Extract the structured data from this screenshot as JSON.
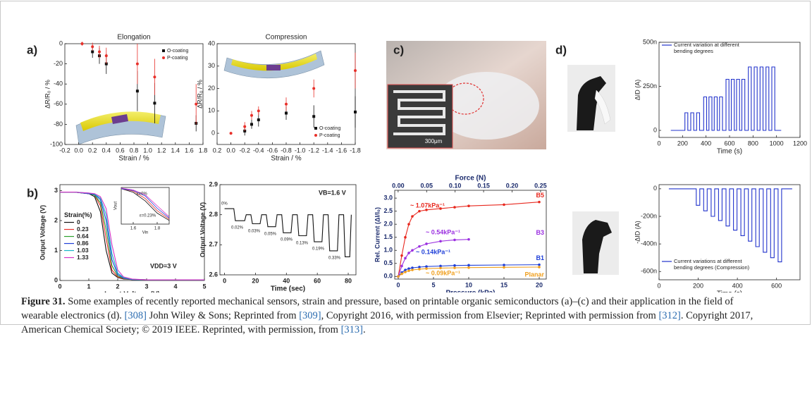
{
  "figure": {
    "panel_labels": [
      "a)",
      "b)",
      "c)",
      "d)"
    ],
    "photo_scale_bar": "300μm",
    "charts": [
      {
        "type": "errorbar",
        "title": "Elongation",
        "xlabel": "Strain / %",
        "ylabel": "ΔR/R₀ / %",
        "xlim": [
          -0.2,
          1.8
        ],
        "xticks": [
          -0.2,
          {
            "value": 0,
            "label": "0.0"
          },
          0.2,
          0.4,
          0.6,
          0.8,
          {
            "value": 1,
            "label": "1.0"
          },
          1.2,
          1.4,
          1.6,
          1.8
        ],
        "ylim": [
          -100,
          0
        ],
        "yticks": [
          -100,
          -80,
          -60,
          -40,
          -20,
          0
        ],
        "legend": "upper right",
        "series": [
          {
            "name": "O-coating",
            "color": "#111111",
            "marker": "square",
            "x": [
              0.2,
              0.3,
              0.4,
              0.85,
              1.1,
              1.7
            ],
            "values": [
              -8,
              -12,
              -20,
              -47,
              -59,
              -79
            ],
            "errors": [
              6,
              8,
              10,
              20,
              20,
              8
            ]
          },
          {
            "name": "P-coating",
            "color": "#e8302a",
            "marker": "circle",
            "x": [
              0.05,
              0.2,
              0.3,
              0.4,
              0.85,
              1.1,
              1.7
            ],
            "values": [
              0,
              -3,
              -8,
              -12,
              -20,
              -33,
              -60
            ],
            "errors": [
              2,
              4,
              6,
              8,
              20,
              18,
              20
            ]
          }
        ]
      },
      {
        "type": "errorbar",
        "title": "Compression",
        "xlabel": "Strain / %",
        "ylabel": "ΔR/R₀ / %",
        "xlim": [
          0.2,
          -1.8
        ],
        "xticks": [
          0.2,
          {
            "value": 0,
            "label": "0.0"
          },
          -0.2,
          -0.4,
          -0.6,
          -0.8,
          {
            "value": -1,
            "label": "-1.0"
          },
          -1.2,
          -1.4,
          -1.6,
          -1.8
        ],
        "ylim": [
          -5,
          40
        ],
        "yticks": [
          0,
          10,
          20,
          30,
          40
        ],
        "legend": "lower right",
        "series": [
          {
            "name": "O-coating",
            "color": "#111111",
            "marker": "square",
            "x": [
              -0.2,
              -0.3,
              -0.4,
              -0.8,
              -1.2,
              -1.8
            ],
            "values": [
              1,
              4,
              6,
              9,
              7.5,
              9.5
            ],
            "errors": [
              2,
              2,
              3,
              3,
              5,
              7
            ]
          },
          {
            "name": "P-coating",
            "color": "#e8302a",
            "marker": "circle",
            "x": [
              0,
              -0.2,
              -0.3,
              -0.4,
              -0.8,
              -1.2,
              -1.8
            ],
            "values": [
              0,
              3,
              8,
              10,
              13,
              20,
              28
            ],
            "errors": [
              0.5,
              2,
              2,
              2,
              3,
              4,
              8
            ]
          }
        ]
      },
      {
        "type": "line",
        "xlabel": "Input Voltage (V)",
        "ylabel": "Output Voltage (V)",
        "xlim": [
          0,
          5
        ],
        "xticks": [
          0,
          1,
          2,
          3,
          4,
          5
        ],
        "ylim": [
          0,
          3.2
        ],
        "yticks": [
          0,
          1,
          2,
          3
        ],
        "legend": "center left",
        "legend_title": "Strain(%)",
        "annotations": [
          "VDD=3 V"
        ],
        "x": [
          0,
          0.5,
          1,
          1.2,
          1.4,
          1.6,
          1.8,
          2,
          2.2,
          2.5,
          3,
          4,
          5
        ],
        "series": [
          {
            "name": "0",
            "color": "#111111",
            "values": [
              2.95,
              2.95,
              2.9,
              2.8,
              2.3,
              1.0,
              0.25,
              0.1,
              0.05,
              0.03,
              0.02,
              0.02,
              0.02
            ]
          },
          {
            "name": "0.23",
            "color": "#e8302a",
            "values": [
              2.95,
              2.95,
              2.9,
              2.85,
              2.5,
              1.4,
              0.35,
              0.12,
              0.06,
              0.03,
              0.02,
              0.02,
              0.02
            ]
          },
          {
            "name": "0.64",
            "color": "#2ca02c",
            "values": [
              2.95,
              2.95,
              2.9,
              2.85,
              2.6,
              1.7,
              0.5,
              0.15,
              0.07,
              0.03,
              0.02,
              0.02,
              0.02
            ]
          },
          {
            "name": "0.86",
            "color": "#1f3fd8",
            "values": [
              2.95,
              2.95,
              2.9,
              2.87,
              2.7,
              2.0,
              0.7,
              0.2,
              0.08,
              0.03,
              0.02,
              0.02,
              0.02
            ]
          },
          {
            "name": "1.03",
            "color": "#17b3c8",
            "values": [
              2.95,
              2.95,
              2.92,
              2.88,
              2.75,
              2.2,
              0.9,
              0.25,
              0.1,
              0.04,
              0.02,
              0.02,
              0.02
            ]
          },
          {
            "name": "1.33",
            "color": "#d633c8",
            "values": [
              2.95,
              2.95,
              2.92,
              2.9,
              2.8,
              2.4,
              1.2,
              0.35,
              0.12,
              0.05,
              0.02,
              0.02,
              0.02
            ]
          }
        ]
      },
      {
        "type": "line",
        "xlabel": "Vin",
        "ylabel": "Vout",
        "xlim": [
          1.5,
          1.9
        ],
        "xticks": [
          1.6,
          1.8
        ],
        "ylim": [
          0,
          3
        ],
        "annotations": [
          "ε=0%",
          "ε=0.23%"
        ],
        "x": [
          1.5,
          1.6,
          1.7,
          1.8,
          1.9
        ],
        "series": [
          {
            "color": "#111111",
            "values": [
              2.9,
              2.6,
              1.9,
              0.9,
              0.3
            ]
          },
          {
            "color": "#e8302a",
            "values": [
              2.9,
              2.7,
              2.1,
              1.1,
              0.4
            ]
          },
          {
            "color": "#1f3fd8",
            "values": [
              2.9,
              2.75,
              2.3,
              1.3,
              0.5
            ]
          },
          {
            "color": "#d633c8",
            "values": [
              2.95,
              2.8,
              2.4,
              1.5,
              0.6
            ]
          }
        ]
      },
      {
        "type": "line",
        "xlabel": "Time (sec)",
        "ylabel": "Output Voltage (V)",
        "xlim": [
          -3,
          85
        ],
        "xticks": [
          0,
          20,
          40,
          60,
          80
        ],
        "ylim": [
          2.6,
          2.9
        ],
        "yticks": [
          2.6,
          2.7,
          2.8,
          2.9
        ],
        "annotations": [
          "VB=1.6 V",
          "0%",
          "0.02%",
          "0.03%",
          "0.05%",
          "0.09%",
          "0.13%",
          "0.19%",
          "0.33%"
        ],
        "x": [
          0,
          6,
          7,
          13,
          14,
          17,
          18,
          23,
          24,
          27,
          28,
          33,
          34,
          37,
          38,
          43,
          44,
          47,
          48,
          53,
          54,
          57,
          58,
          63,
          64,
          67,
          68,
          73,
          74,
          77,
          78,
          81,
          82
        ],
        "series": [
          {
            "color": "#111111",
            "values": [
              2.82,
              2.82,
              2.78,
              2.78,
              2.8,
              2.8,
              2.77,
              2.77,
              2.8,
              2.8,
              2.76,
              2.76,
              2.8,
              2.8,
              2.74,
              2.74,
              2.8,
              2.8,
              2.73,
              2.73,
              2.8,
              2.8,
              2.71,
              2.71,
              2.8,
              2.8,
              2.68,
              2.68,
              2.8,
              2.8,
              2.66,
              2.66,
              2.8
            ]
          }
        ]
      },
      {
        "type": "scatter-line",
        "xlabel": "Pressure (kPa)",
        "x2label": "Force (N)",
        "ylabel": "Rel. Current (ΔI/I₀)",
        "xlim": [
          -0.5,
          21
        ],
        "xticks": [
          0,
          5,
          10,
          15,
          20
        ],
        "x2lim": [
          -0.006,
          0.26
        ],
        "x2ticks": [
          {
            "value": 0,
            "label": "0.00"
          },
          0.05,
          {
            "value": 0.1,
            "label": "0.10"
          },
          0.15,
          {
            "value": 0.2,
            "label": "0.20"
          },
          0.25
        ],
        "ylim": [
          -0.1,
          3.3
        ],
        "yticks": [
          {
            "value": 0,
            "label": "0.0"
          },
          0.5,
          {
            "value": 1,
            "label": "1.0"
          },
          1.5,
          {
            "value": 2,
            "label": "2.0"
          },
          2.5,
          {
            "value": 3,
            "label": "3.0"
          }
        ],
        "legend": "end",
        "annotations": [
          {
            "text": "~ 1.07kPa⁻¹",
            "color": "#e8281e"
          },
          {
            "text": "~ 0.54kPa⁻¹",
            "color": "#9b30e0"
          },
          {
            "text": "~ 0.14kPa⁻¹",
            "color": "#1f3fd8"
          },
          {
            "text": "~ 0.09kPa⁻¹",
            "color": "#f0a020"
          }
        ],
        "x": [
          0,
          0.5,
          1,
          1.5,
          2,
          3,
          4,
          6,
          8,
          10,
          15,
          20
        ],
        "series": [
          {
            "name": "B5",
            "color": "#e8281e",
            "values": [
              0,
              0.8,
              1.5,
              2.0,
              2.3,
              2.5,
              2.55,
              2.6,
              2.65,
              2.7,
              2.75,
              2.85
            ]
          },
          {
            "name": "B3",
            "color": "#9b30e0",
            "values": [
              0,
              0.4,
              0.7,
              0.9,
              1.0,
              1.15,
              1.25,
              1.35,
              1.4,
              1.42,
              null,
              null
            ]
          },
          {
            "name": "B1",
            "color": "#1f3fd8",
            "values": [
              0,
              0.15,
              0.25,
              0.3,
              0.33,
              0.36,
              0.38,
              0.4,
              0.42,
              0.43,
              0.44,
              0.45
            ]
          },
          {
            "name": "Planar",
            "color": "#f0a020",
            "values": [
              0,
              0.1,
              0.17,
              0.22,
              0.25,
              0.28,
              0.3,
              0.32,
              0.33,
              0.34,
              0.35,
              0.36
            ]
          }
        ]
      },
      {
        "type": "line",
        "xlabel": "Time (s)",
        "ylabel": "ΔID (A)",
        "xlim": [
          0,
          1200
        ],
        "xticks": [
          0,
          200,
          400,
          600,
          800,
          1000,
          1200
        ],
        "ylim": [
          -4e-08,
          5e-07
        ],
        "yticks": [
          0,
          {
            "value": 2.5e-07,
            "label": "250n"
          },
          {
            "value": 5e-07,
            "label": "500n"
          }
        ],
        "legend": "upper left",
        "x": [
          100,
          220,
          220,
          245,
          245,
          270,
          270,
          295,
          295,
          320,
          320,
          345,
          345,
          380,
          380,
          405,
          405,
          425,
          425,
          450,
          450,
          470,
          470,
          495,
          495,
          515,
          515,
          540,
          540,
          570,
          570,
          595,
          595,
          615,
          615,
          640,
          640,
          660,
          660,
          685,
          685,
          705,
          705,
          730,
          730,
          760,
          760,
          785,
          785,
          810,
          810,
          835,
          835,
          860,
          860,
          885,
          885,
          910,
          910,
          935,
          935,
          960,
          960,
          985,
          985,
          1040
        ],
        "series": [
          {
            "name": "Current variation at different bending degrees",
            "color": "#2233cc",
            "values": [
              0,
              0,
              1e-07,
              1e-07,
              0,
              0,
              1e-07,
              1e-07,
              0,
              0,
              1e-07,
              1e-07,
              0,
              0,
              1.9e-07,
              1.9e-07,
              0,
              0,
              1.9e-07,
              1.9e-07,
              0,
              0,
              1.9e-07,
              1.9e-07,
              0,
              0,
              1.9e-07,
              1.9e-07,
              0,
              0,
              2.9e-07,
              2.9e-07,
              0,
              0,
              2.9e-07,
              2.9e-07,
              0,
              0,
              2.9e-07,
              2.9e-07,
              0,
              0,
              2.9e-07,
              2.9e-07,
              0,
              0,
              3.6e-07,
              3.6e-07,
              0,
              0,
              3.6e-07,
              3.6e-07,
              0,
              0,
              3.6e-07,
              3.6e-07,
              0,
              0,
              3.6e-07,
              3.6e-07,
              0,
              0,
              3.6e-07,
              3.6e-07,
              0,
              0
            ]
          }
        ]
      },
      {
        "type": "line",
        "xlabel": "Time (s)",
        "ylabel": "-ΔID (A)",
        "xlim": [
          0,
          720
        ],
        "xticks": [
          0,
          200,
          400,
          600
        ],
        "ylim": [
          -6.6e-07,
          3e-08
        ],
        "yticks": [
          0,
          {
            "value": -2e-07,
            "label": "-200n"
          },
          {
            "value": -4e-07,
            "label": "-400n"
          },
          {
            "value": -6e-07,
            "label": "-600n"
          }
        ],
        "legend": "lower left",
        "x": [
          50,
          190,
          190,
          208,
          208,
          228,
          228,
          246,
          246,
          266,
          266,
          284,
          284,
          304,
          304,
          322,
          322,
          342,
          342,
          360,
          360,
          380,
          380,
          398,
          398,
          418,
          418,
          436,
          436,
          456,
          456,
          474,
          474,
          494,
          494,
          512,
          512,
          532,
          532,
          550,
          550,
          570,
          570,
          588,
          588,
          608,
          608,
          626,
          626,
          680
        ],
        "series": [
          {
            "name": "Current variations at different bending degrees (Compression)",
            "color": "#2233cc",
            "values": [
              0,
              0,
              -1.2e-07,
              -1.2e-07,
              0,
              0,
              -1.6e-07,
              -1.6e-07,
              0,
              0,
              -2e-07,
              -2e-07,
              0,
              0,
              -2.3e-07,
              -2.3e-07,
              0,
              0,
              -2.7e-07,
              -2.7e-07,
              0,
              0,
              -3e-07,
              -3e-07,
              0,
              0,
              -3.4e-07,
              -3.4e-07,
              0,
              0,
              -3.8e-07,
              -3.8e-07,
              0,
              0,
              -4.2e-07,
              -4.2e-07,
              0,
              0,
              -4.6e-07,
              -4.6e-07,
              0,
              0,
              -5e-07,
              -5e-07,
              0,
              0,
              -5.3e-07,
              -5.3e-07,
              0,
              0
            ]
          }
        ]
      }
    ]
  },
  "caption": {
    "label": "Figure 31.",
    "parts": [
      {
        "text": " Some examples of recently reported mechanical sensors, strain and pressure, based on printable organic semiconductors (a)–(c) and their application in the field of wearable electronics (d). "
      },
      {
        "ref": "[308]"
      },
      {
        "text": " John Wiley & Sons; Reprinted from "
      },
      {
        "ref": "[309]"
      },
      {
        "text": ", Copyright 2016, with permission from Elsevier; Reprinted with permission from "
      },
      {
        "ref": "[312]"
      },
      {
        "text": ". Copyright 2017, American Chemical Society; © 2019 IEEE. Reprinted, with permission, from "
      },
      {
        "ref": "[313]"
      },
      {
        "text": "."
      }
    ]
  }
}
